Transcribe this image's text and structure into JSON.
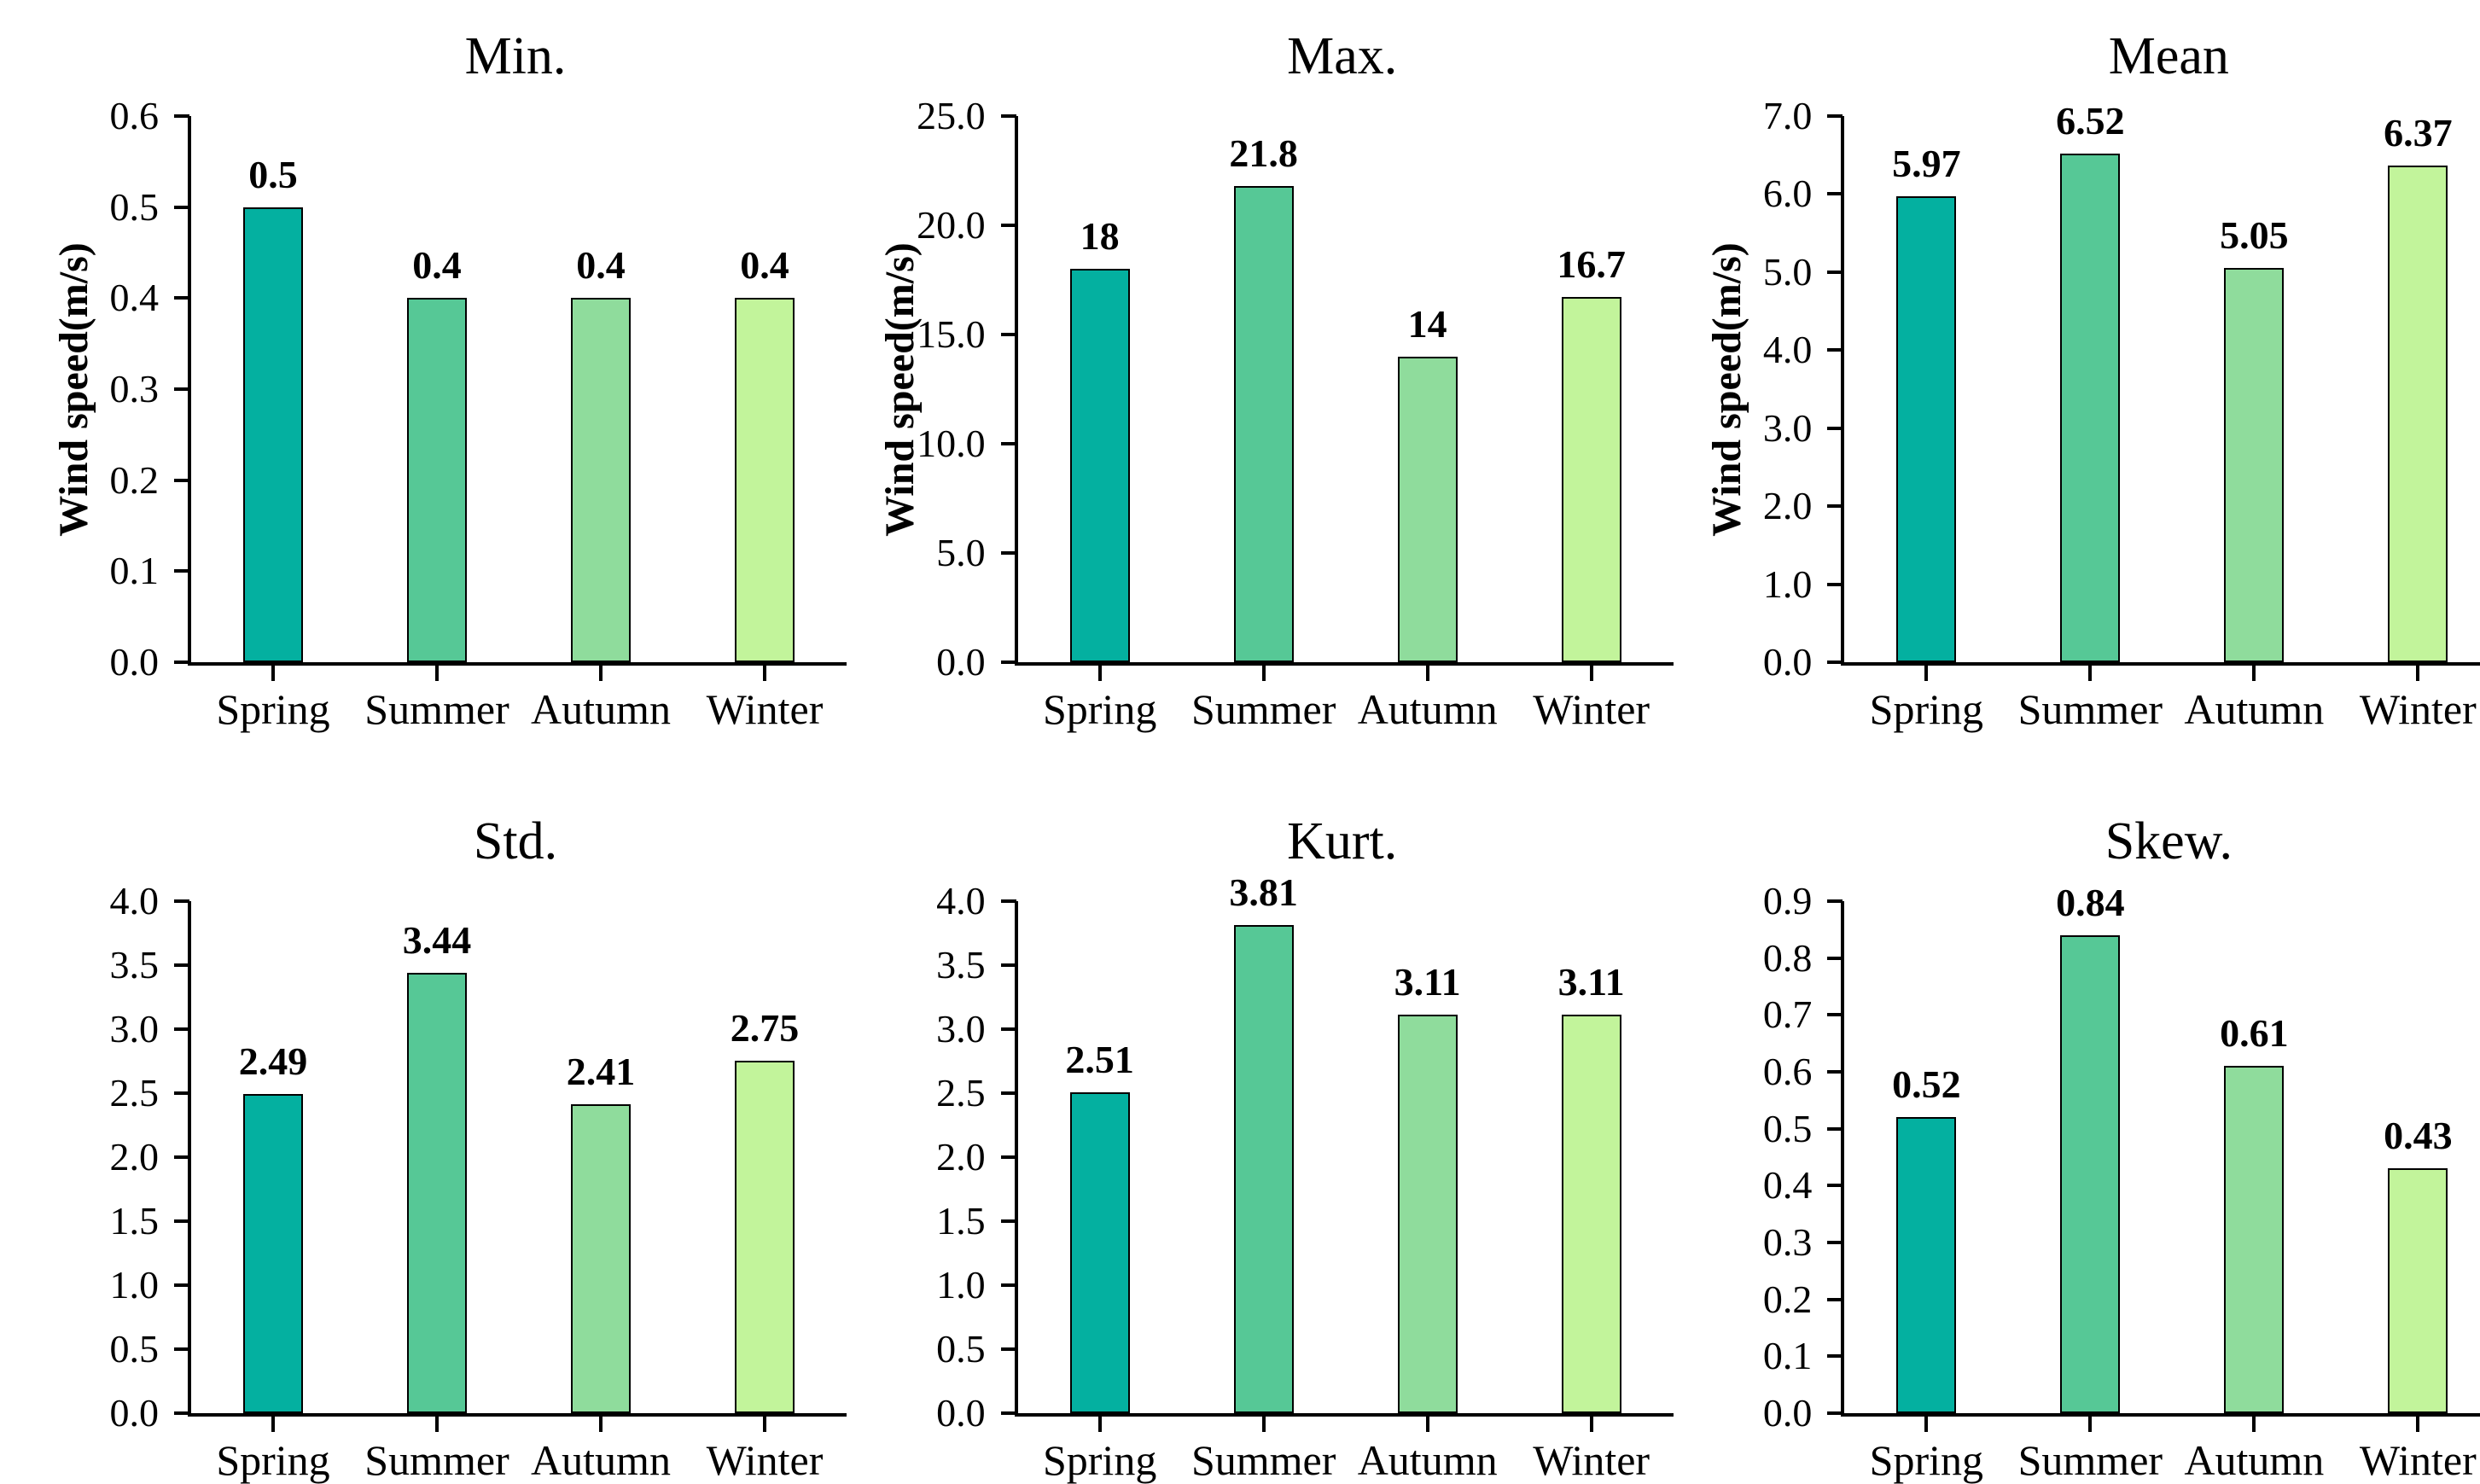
{
  "figure": {
    "background": "#ffffff",
    "text_color": "#000000",
    "axis_color": "#000000",
    "bar_edge_color": "#000000",
    "bar_colors": [
      "#04B0A0",
      "#56C896",
      "#8FDC9C",
      "#C2F49B"
    ]
  },
  "chart_data": [
    {
      "type": "bar",
      "title": "Min.",
      "ylabel": "Wind speed(m/s)",
      "categories": [
        "Spring",
        "Summer",
        "Autumn",
        "Winter"
      ],
      "values": [
        0.5,
        0.4,
        0.4,
        0.4
      ],
      "bar_labels": [
        "0.5",
        "0.4",
        "0.4",
        "0.4"
      ],
      "ylim": [
        0,
        0.6
      ],
      "yticks": [
        "0.0",
        "0.1",
        "0.2",
        "0.3",
        "0.4",
        "0.5",
        "0.6"
      ],
      "grid": "off",
      "legend": "none"
    },
    {
      "type": "bar",
      "title": "Max.",
      "ylabel": "Wind speed(m/s)",
      "categories": [
        "Spring",
        "Summer",
        "Autumn",
        "Winter"
      ],
      "values": [
        18,
        21.8,
        14,
        16.7
      ],
      "bar_labels": [
        "18",
        "21.8",
        "14",
        "16.7"
      ],
      "ylim": [
        0,
        25
      ],
      "yticks": [
        "0.0",
        "5.0",
        "10.0",
        "15.0",
        "20.0",
        "25.0"
      ],
      "grid": "off",
      "legend": "none"
    },
    {
      "type": "bar",
      "title": "Mean",
      "ylabel": "Wind speed(m/s)",
      "categories": [
        "Spring",
        "Summer",
        "Autumn",
        "Winter"
      ],
      "values": [
        5.97,
        6.52,
        5.05,
        6.37
      ],
      "bar_labels": [
        "5.97",
        "6.52",
        "5.05",
        "6.37"
      ],
      "ylim": [
        0,
        7
      ],
      "yticks": [
        "0.0",
        "1.0",
        "2.0",
        "3.0",
        "4.0",
        "5.0",
        "6.0",
        "7.0"
      ],
      "grid": "off",
      "legend": "none"
    },
    {
      "type": "bar",
      "title": "Std.",
      "ylabel": "",
      "categories": [
        "Spring",
        "Summer",
        "Autumn",
        "Winter"
      ],
      "values": [
        2.49,
        3.44,
        2.41,
        2.75
      ],
      "bar_labels": [
        "2.49",
        "3.44",
        "2.41",
        "2.75"
      ],
      "ylim": [
        0,
        4
      ],
      "yticks": [
        "0.0",
        "0.5",
        "1.0",
        "1.5",
        "2.0",
        "2.5",
        "3.0",
        "3.5",
        "4.0"
      ],
      "grid": "off",
      "legend": "none"
    },
    {
      "type": "bar",
      "title": "Kurt.",
      "ylabel": "",
      "categories": [
        "Spring",
        "Summer",
        "Autumn",
        "Winter"
      ],
      "values": [
        2.51,
        3.81,
        3.11,
        3.11
      ],
      "bar_labels": [
        "2.51",
        "3.81",
        "3.11",
        "3.11"
      ],
      "ylim": [
        0,
        4
      ],
      "yticks": [
        "0.0",
        "0.5",
        "1.0",
        "1.5",
        "2.0",
        "2.5",
        "3.0",
        "3.5",
        "4.0"
      ],
      "grid": "off",
      "legend": "none"
    },
    {
      "type": "bar",
      "title": "Skew.",
      "ylabel": "",
      "categories": [
        "Spring",
        "Summer",
        "Autumn",
        "Winter"
      ],
      "values": [
        0.52,
        0.84,
        0.61,
        0.43
      ],
      "bar_labels": [
        "0.52",
        "0.84",
        "0.61",
        "0.43"
      ],
      "ylim": [
        0,
        0.9
      ],
      "yticks": [
        "0.0",
        "0.1",
        "0.2",
        "0.3",
        "0.4",
        "0.5",
        "0.6",
        "0.7",
        "0.8",
        "0.9"
      ],
      "grid": "off",
      "legend": "none"
    }
  ]
}
